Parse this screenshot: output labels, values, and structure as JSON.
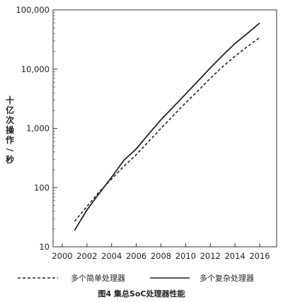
{
  "chart_data": {
    "type": "line",
    "title": "",
    "caption": "图4 集总SoC处理器性能",
    "xlabel": "",
    "ylabel": "十亿次操作/秒",
    "ylabel_chars": [
      "十",
      "亿",
      "次",
      "操",
      "作",
      "/",
      "秒"
    ],
    "xlim": [
      2000,
      2017
    ],
    "ylim": [
      10,
      100000
    ],
    "yscale": "log",
    "grid": false,
    "legend": "bottom",
    "x_ticks": [
      2000,
      2002,
      2004,
      2006,
      2008,
      2010,
      2012,
      2014,
      2016
    ],
    "x_tick_labels": [
      "2000",
      "2002",
      "2004",
      "2006",
      "2008",
      "2010",
      "2012",
      "2014",
      "2016"
    ],
    "y_ticks": [
      10,
      100,
      1000,
      10000,
      100000
    ],
    "y_tick_labels": [
      "10",
      "100",
      "1,000",
      "10,000",
      "100,000"
    ],
    "series": [
      {
        "name": "多个简单处理器",
        "style": "dashed",
        "color": "#222222",
        "x": [
          2001,
          2002,
          2003,
          2004,
          2005,
          2006,
          2007,
          2008,
          2009,
          2010,
          2011,
          2012,
          2013,
          2014,
          2015,
          2016
        ],
        "y": [
          27,
          48,
          85,
          140,
          230,
          360,
          600,
          1000,
          1650,
          2700,
          4300,
          7000,
          11000,
          16500,
          24000,
          34000
        ]
      },
      {
        "name": "多个复杂处理器",
        "style": "solid",
        "color": "#222222",
        "x": [
          2001,
          2002,
          2003,
          2004,
          2005,
          2006,
          2007,
          2008,
          2009,
          2010,
          2011,
          2012,
          2013,
          2014,
          2015,
          2016
        ],
        "y": [
          19,
          42,
          80,
          150,
          290,
          450,
          800,
          1400,
          2300,
          3800,
          6300,
          10500,
          17000,
          27000,
          40000,
          60000
        ]
      }
    ]
  }
}
